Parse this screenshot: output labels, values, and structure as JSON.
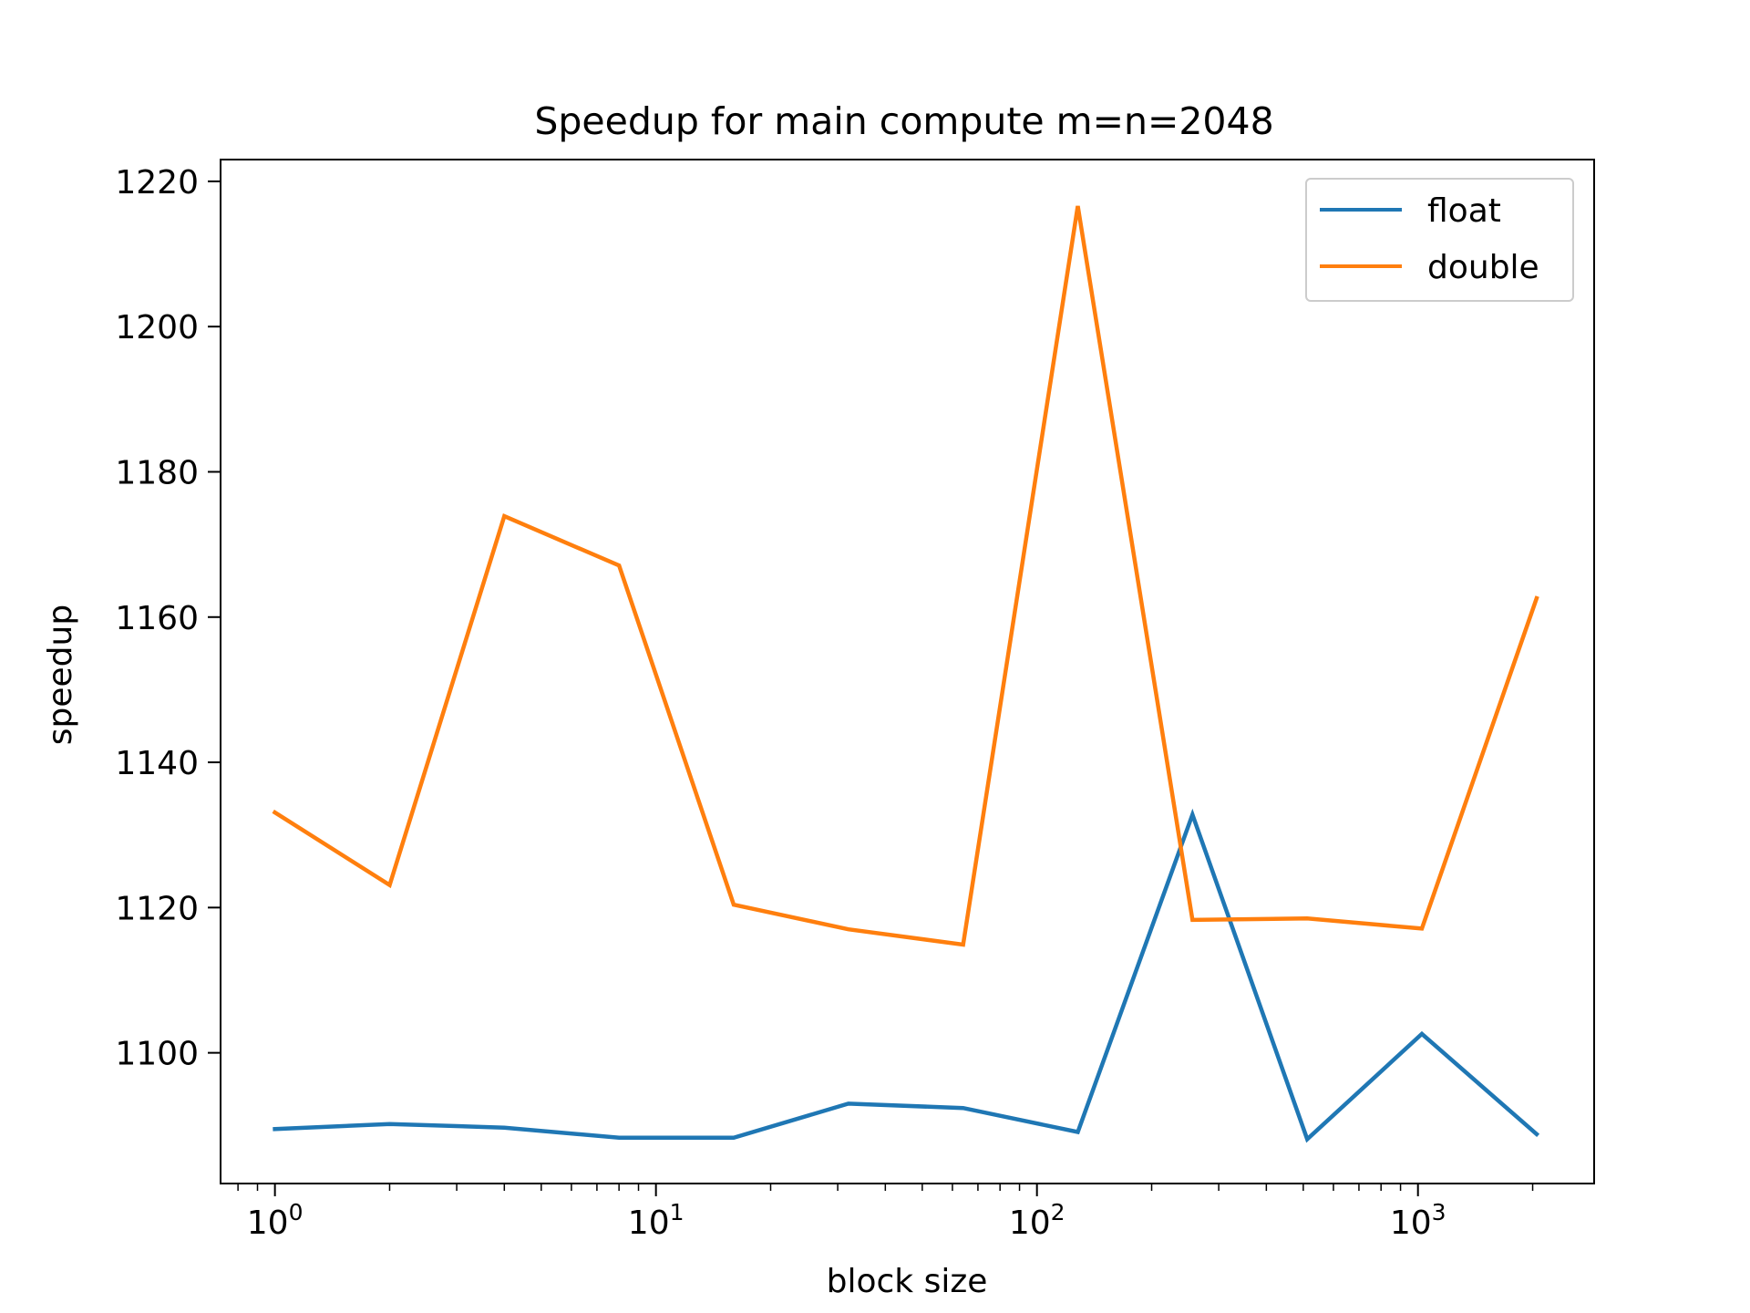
{
  "chart_data": {
    "type": "line",
    "title": "Speedup for main compute m=n=2048",
    "xlabel": "block size",
    "ylabel": "speedup",
    "xscale": "log",
    "xlim": [
      0.72,
      2900
    ],
    "ylim": [
      1082,
      1223
    ],
    "x_ticks": [
      {
        "value": 1,
        "base": "10",
        "exp": "0"
      },
      {
        "value": 10,
        "base": "10",
        "exp": "1"
      },
      {
        "value": 100,
        "base": "10",
        "exp": "2"
      },
      {
        "value": 1000,
        "base": "10",
        "exp": "3"
      }
    ],
    "y_ticks": [
      "1100",
      "1120",
      "1140",
      "1160",
      "1180",
      "1200",
      "1220"
    ],
    "grid": false,
    "legend_position": "top-right",
    "x": [
      1,
      2,
      4,
      8,
      16,
      32,
      64,
      128,
      256,
      512,
      1024,
      2048
    ],
    "series": [
      {
        "name": "float",
        "color": "#1f77b4",
        "values": [
          1089.5,
          1090.2,
          1089.7,
          1088.3,
          1088.3,
          1093.0,
          1092.4,
          1089.1,
          1132.8,
          1088.1,
          1102.6,
          1088.8
        ]
      },
      {
        "name": "double",
        "color": "#ff7f0e",
        "values": [
          1133.1,
          1123.1,
          1173.9,
          1167.1,
          1120.4,
          1117.0,
          1114.9,
          1216.6,
          1118.3,
          1118.5,
          1117.1,
          1162.6
        ]
      }
    ]
  }
}
